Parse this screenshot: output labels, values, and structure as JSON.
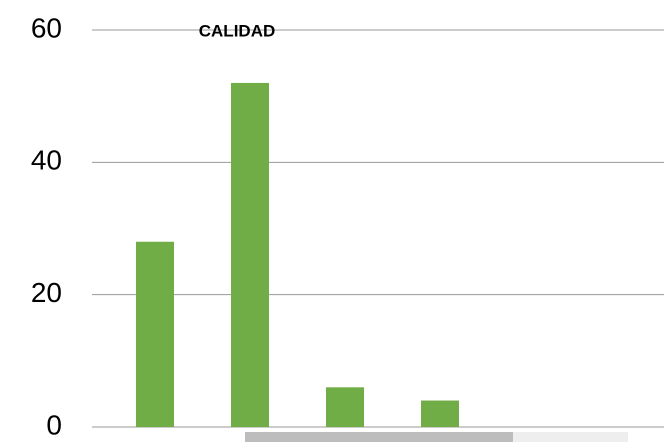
{
  "chart_data": {
    "type": "bar",
    "title": "CALIDAD",
    "categories": [
      null,
      null,
      null,
      null
    ],
    "values": [
      28,
      52,
      6,
      4
    ],
    "color": "#70ad47",
    "ylim": [
      0,
      60
    ],
    "yticks": [
      0,
      20,
      40,
      60
    ],
    "grid": true
  }
}
